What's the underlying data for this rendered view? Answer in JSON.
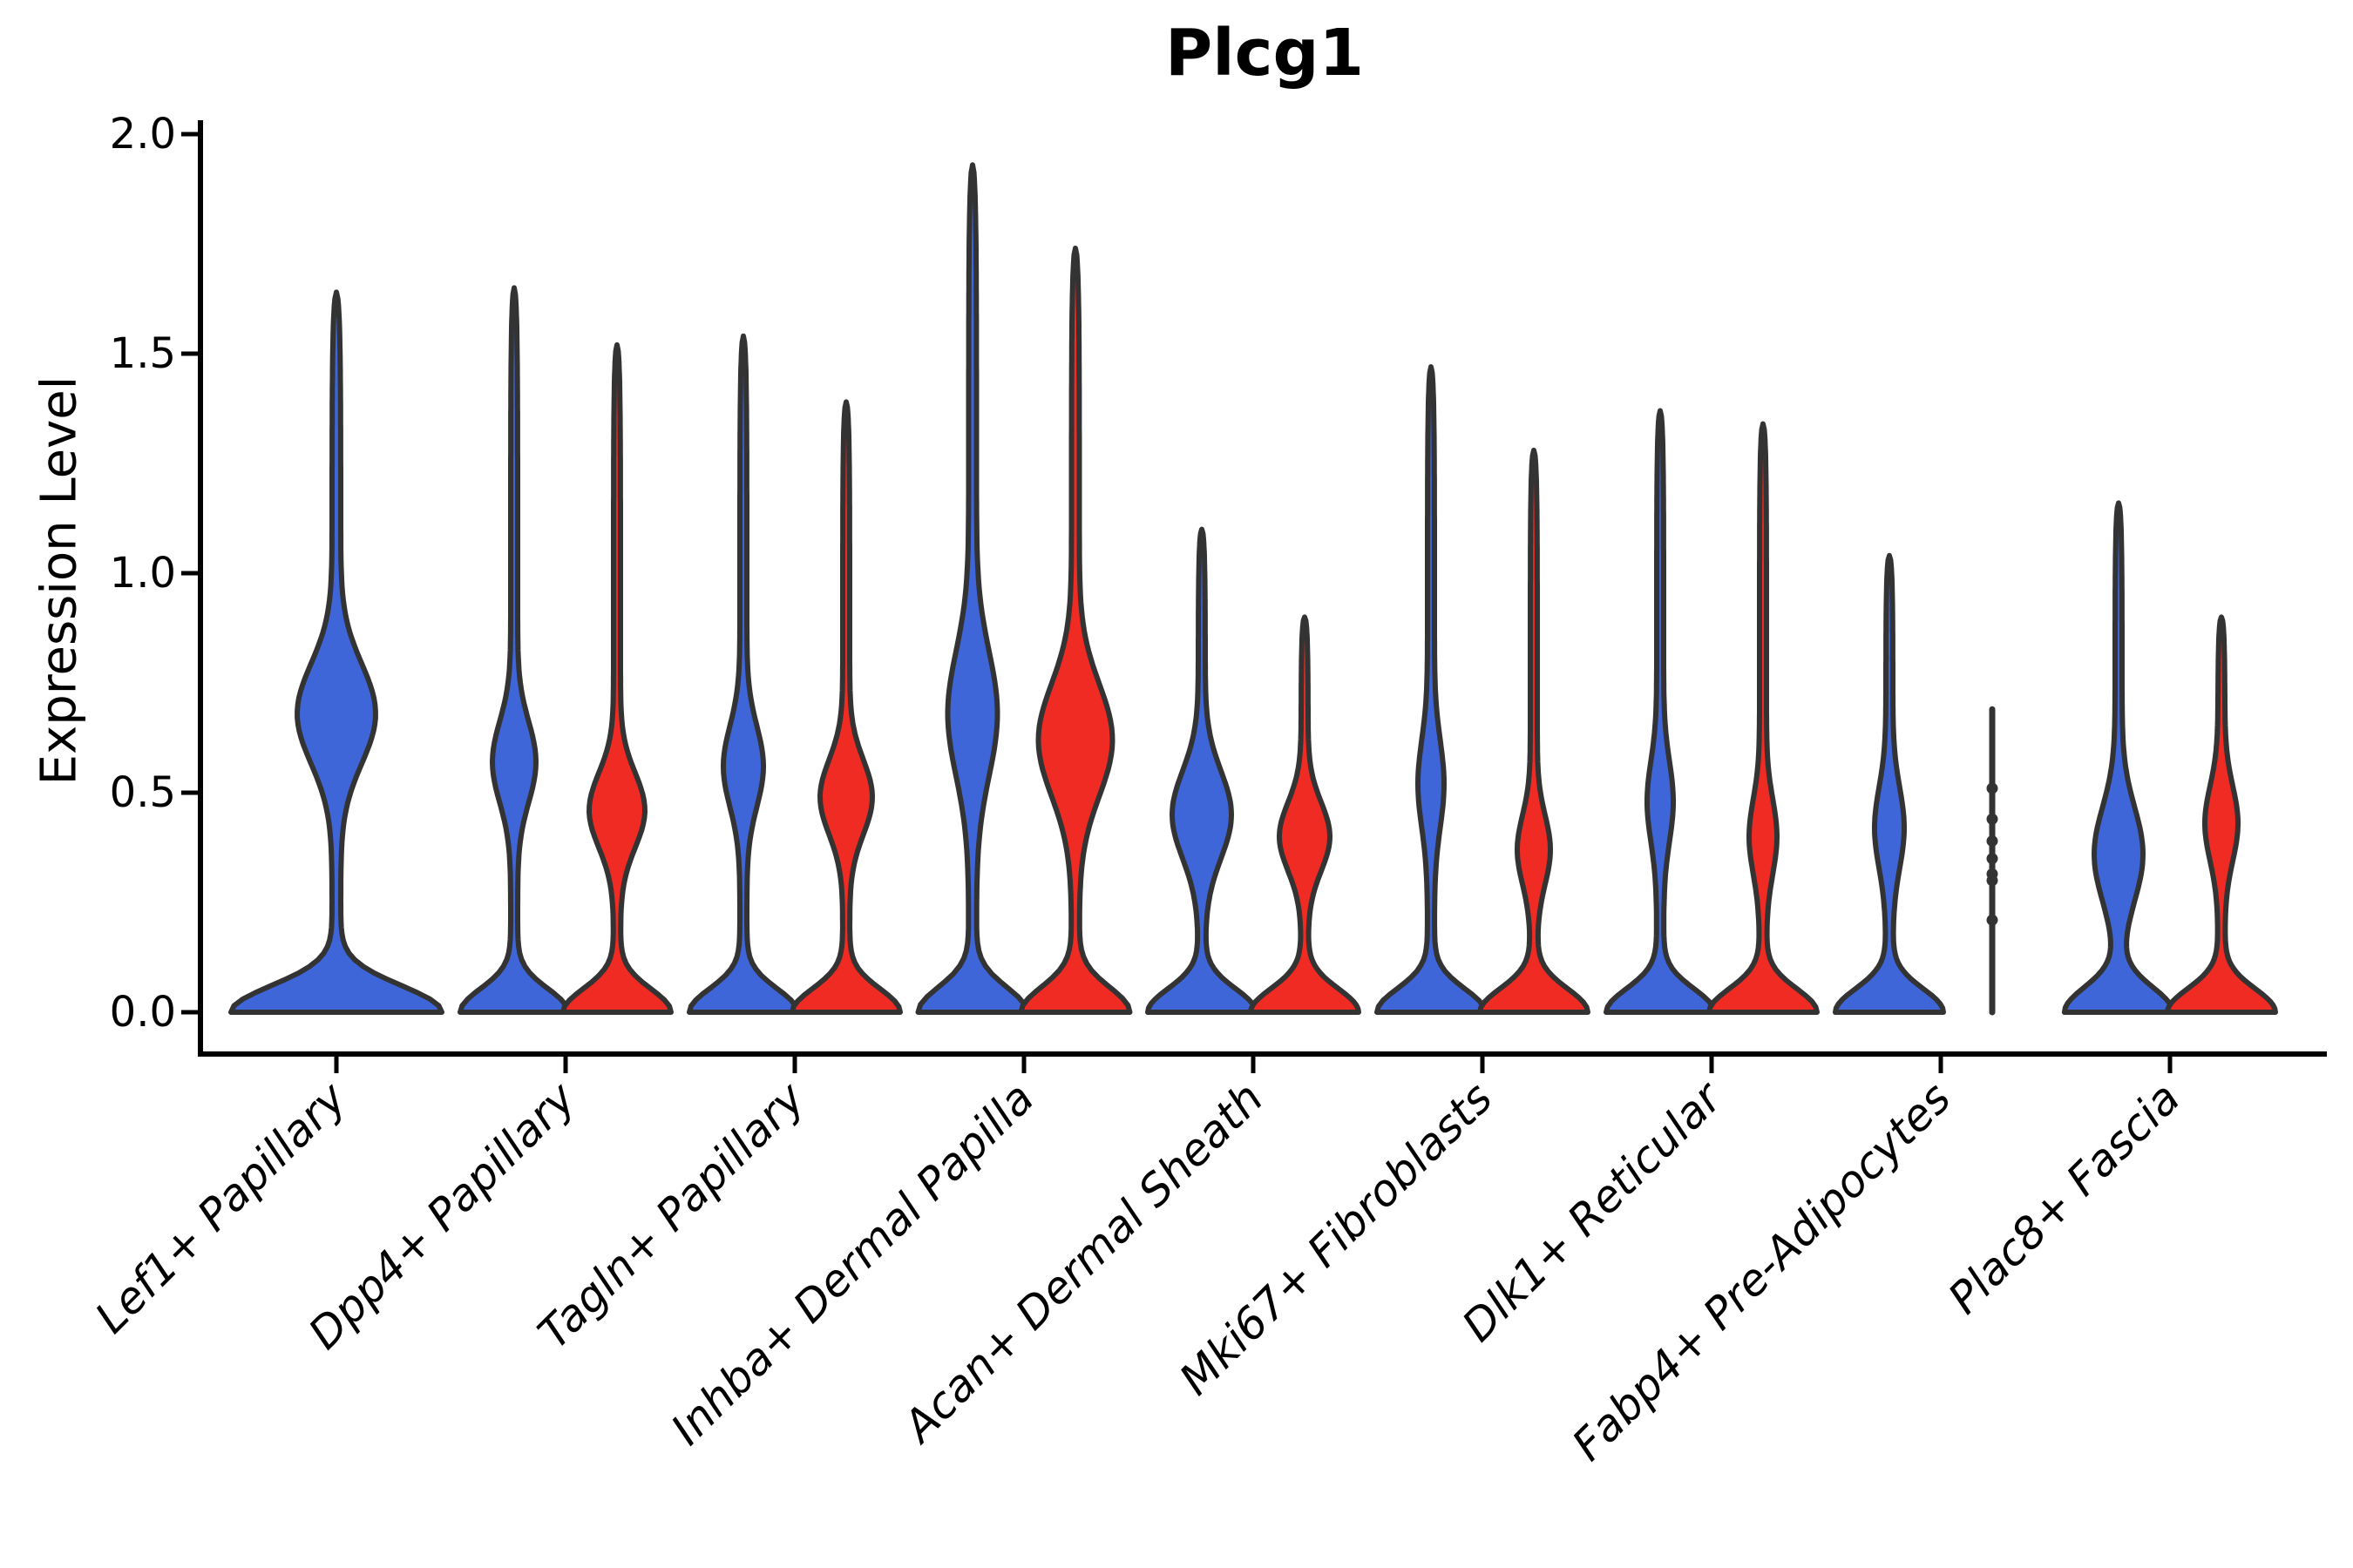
{
  "chart_data": {
    "type": "violin",
    "title": "Plcg1",
    "ylabel": "Expression Level",
    "xlabel": "",
    "ylim": [
      0,
      2.0
    ],
    "yticks": [
      "0.0",
      "0.5",
      "1.0",
      "1.5",
      "2.0"
    ],
    "ytick_values": [
      0.0,
      0.5,
      1.0,
      1.5,
      2.0
    ],
    "grid": false,
    "legend": "none",
    "categories": [
      "Lef1+ Papillary",
      "Dpp4+ Papillary",
      "Tagln+ Papillary",
      "Inhba+ Dermal Papilla",
      "Acan+ Dermal Sheath",
      "Mki67+ Fibroblasts",
      "Dlk1+ Reticular",
      "Fabp4+ Pre-Adipocytes",
      "Plac8+ Fascia"
    ],
    "split_colors": {
      "blue": "#3F66D9",
      "red": "#EF2B24"
    },
    "outline_color": "#333333",
    "violins": [
      {
        "category_index": 0,
        "category": "Lef1+ Papillary",
        "side": "center",
        "split": "blue",
        "max": 1.64,
        "bulge_center": 0.68,
        "bulge_sigma": 0.16,
        "bulge_halfwidth": 40,
        "base_halfwidth": 116,
        "base_sigma": 0.085,
        "stem_halfwidth": 5
      },
      {
        "category_index": 1,
        "category": "Dpp4+ Papillary",
        "side": "left",
        "split": "blue",
        "max": 1.65,
        "bulge_center": 0.57,
        "bulge_sigma": 0.13,
        "bulge_halfwidth": 21,
        "base_halfwidth": 58,
        "base_sigma": 0.075,
        "stem_halfwidth": 4
      },
      {
        "category_index": 1,
        "category": "Dpp4+ Papillary",
        "side": "right",
        "split": "red",
        "max": 1.52,
        "bulge_center": 0.46,
        "bulge_sigma": 0.12,
        "bulge_halfwidth": 28,
        "base_halfwidth": 58,
        "base_sigma": 0.075,
        "stem_halfwidth": 4
      },
      {
        "category_index": 2,
        "category": "Tagln+ Papillary",
        "side": "left",
        "split": "blue",
        "max": 1.54,
        "bulge_center": 0.56,
        "bulge_sigma": 0.13,
        "bulge_halfwidth": 19,
        "base_halfwidth": 58,
        "base_sigma": 0.075,
        "stem_halfwidth": 4
      },
      {
        "category_index": 2,
        "category": "Tagln+ Papillary",
        "side": "right",
        "split": "red",
        "max": 1.39,
        "bulge_center": 0.49,
        "bulge_sigma": 0.12,
        "bulge_halfwidth": 26,
        "base_halfwidth": 58,
        "base_sigma": 0.075,
        "stem_halfwidth": 4
      },
      {
        "category_index": 3,
        "category": "Inhba+ Dermal Papilla",
        "side": "left",
        "split": "blue",
        "max": 1.93,
        "bulge_center": 0.68,
        "bulge_sigma": 0.2,
        "bulge_halfwidth": 24,
        "base_halfwidth": 58,
        "base_sigma": 0.08,
        "stem_halfwidth": 4.5
      },
      {
        "category_index": 3,
        "category": "Inhba+ Dermal Papilla",
        "side": "right",
        "split": "red",
        "max": 1.74,
        "bulge_center": 0.62,
        "bulge_sigma": 0.18,
        "bulge_halfwidth": 38,
        "base_halfwidth": 58,
        "base_sigma": 0.08,
        "stem_halfwidth": 4.5
      },
      {
        "category_index": 4,
        "category": "Acan+ Dermal Sheath",
        "side": "left",
        "split": "blue",
        "max": 1.1,
        "bulge_center": 0.45,
        "bulge_sigma": 0.14,
        "bulge_halfwidth": 30,
        "base_halfwidth": 58,
        "base_sigma": 0.075,
        "stem_halfwidth": 4
      },
      {
        "category_index": 4,
        "category": "Acan+ Dermal Sheath",
        "side": "right",
        "split": "red",
        "max": 0.9,
        "bulge_center": 0.4,
        "bulge_sigma": 0.11,
        "bulge_halfwidth": 25,
        "base_halfwidth": 58,
        "base_sigma": 0.075,
        "stem_halfwidth": 4
      },
      {
        "category_index": 5,
        "category": "Mki67+ Fibroblasts",
        "side": "left",
        "split": "blue",
        "max": 1.47,
        "bulge_center": 0.52,
        "bulge_sigma": 0.14,
        "bulge_halfwidth": 11,
        "base_halfwidth": 58,
        "base_sigma": 0.075,
        "stem_halfwidth": 4
      },
      {
        "category_index": 5,
        "category": "Mki67+ Fibroblasts",
        "side": "right",
        "split": "red",
        "max": 1.28,
        "bulge_center": 0.37,
        "bulge_sigma": 0.11,
        "bulge_halfwidth": 15,
        "base_halfwidth": 58,
        "base_sigma": 0.075,
        "stem_halfwidth": 4
      },
      {
        "category_index": 6,
        "category": "Dlk1+ Reticular",
        "side": "left",
        "split": "blue",
        "max": 1.37,
        "bulge_center": 0.48,
        "bulge_sigma": 0.13,
        "bulge_halfwidth": 11,
        "base_halfwidth": 58,
        "base_sigma": 0.075,
        "stem_halfwidth": 4
      },
      {
        "category_index": 6,
        "category": "Dlk1+ Reticular",
        "side": "right",
        "split": "red",
        "max": 1.34,
        "bulge_center": 0.4,
        "bulge_sigma": 0.12,
        "bulge_halfwidth": 12,
        "base_halfwidth": 58,
        "base_sigma": 0.075,
        "stem_halfwidth": 4
      },
      {
        "category_index": 7,
        "category": "Fabp4+ Pre-Adipocytes",
        "side": "left",
        "split": "blue",
        "max": 1.04,
        "bulge_center": 0.42,
        "bulge_sigma": 0.13,
        "bulge_halfwidth": 13,
        "base_halfwidth": 58,
        "base_sigma": 0.075,
        "stem_halfwidth": 4
      },
      {
        "category_index": 7,
        "category": "Fabp4+ Pre-Adipocytes",
        "side": "right",
        "split": "red",
        "type": "line",
        "max": 0.69,
        "points": [
          0.51,
          0.44,
          0.39,
          0.35,
          0.315,
          0.3,
          0.21
        ]
      },
      {
        "category_index": 8,
        "category": "Plac8+ Fascia",
        "side": "left",
        "split": "blue",
        "max": 1.16,
        "bulge_center": 0.36,
        "bulge_sigma": 0.15,
        "bulge_halfwidth": 24,
        "base_halfwidth": 58,
        "base_sigma": 0.08,
        "stem_halfwidth": 4
      },
      {
        "category_index": 8,
        "category": "Plac8+ Fascia",
        "side": "right",
        "split": "red",
        "max": 0.9,
        "bulge_center": 0.43,
        "bulge_sigma": 0.12,
        "bulge_halfwidth": 15,
        "base_halfwidth": 58,
        "base_sigma": 0.075,
        "stem_halfwidth": 4
      }
    ]
  }
}
